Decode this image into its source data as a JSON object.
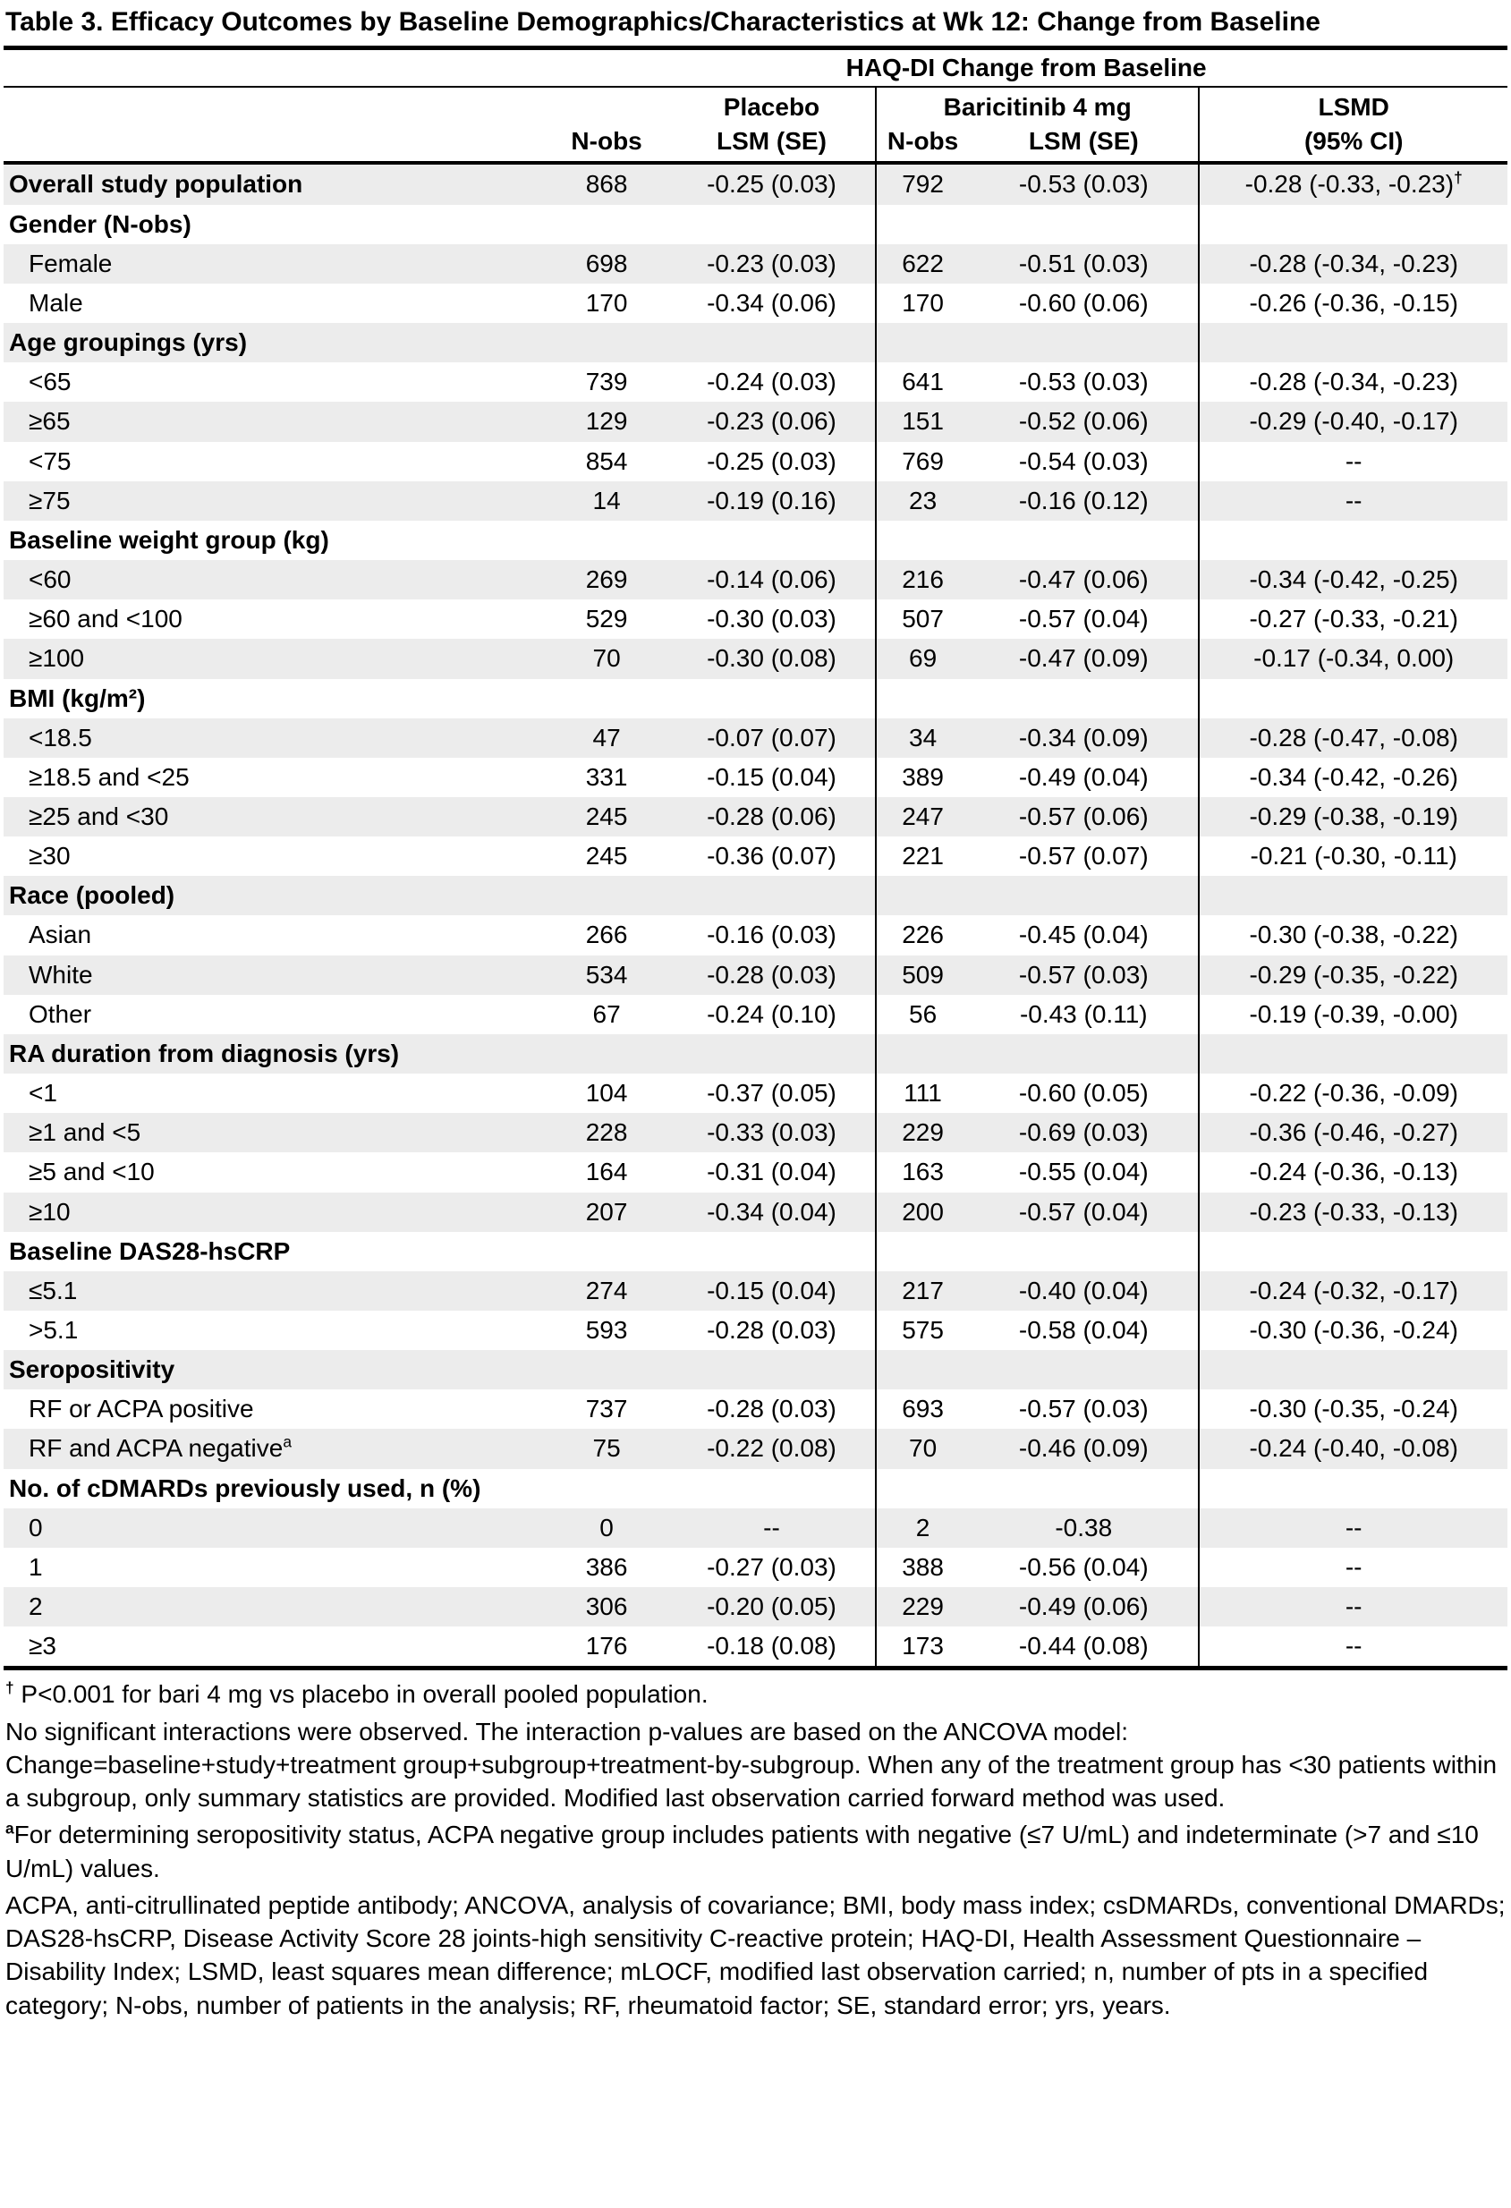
{
  "title": "Table 3. Efficacy Outcomes by Baseline Demographics/Characteristics at Wk 12: Change from Baseline",
  "colors": {
    "row_stripe": "#ececec",
    "text": "#000000",
    "background": "#ffffff"
  },
  "table": {
    "span_header": "HAQ-DI Change from Baseline",
    "groups": {
      "placebo": "Placebo",
      "baricitinib": "Baricitinib 4 mg",
      "lsmd": "LSMD"
    },
    "columns": {
      "nobs1": "N-obs",
      "lsm1": "LSM (SE)",
      "nobs2": "N-obs",
      "lsm2": "LSM (SE)",
      "ci": "(95% CI)"
    },
    "rows": [
      {
        "kind": "data",
        "emphasis": true,
        "label": "Overall study population",
        "values": [
          "868",
          "-0.25 (0.03)",
          "792",
          "-0.53 (0.03)",
          "-0.28 (-0.33, -0.23)"
        ],
        "value_sup": "†"
      },
      {
        "kind": "section",
        "label": "Gender (N-obs)"
      },
      {
        "kind": "data",
        "label": "Female",
        "values": [
          "698",
          "-0.23 (0.03)",
          "622",
          "-0.51 (0.03)",
          "-0.28 (-0.34, -0.23)"
        ]
      },
      {
        "kind": "data",
        "label": "Male",
        "values": [
          "170",
          "-0.34 (0.06)",
          "170",
          "-0.60 (0.06)",
          "-0.26 (-0.36, -0.15)"
        ]
      },
      {
        "kind": "section",
        "label": "Age groupings (yrs)"
      },
      {
        "kind": "data",
        "label": "<65",
        "values": [
          "739",
          "-0.24 (0.03)",
          "641",
          "-0.53 (0.03)",
          "-0.28 (-0.34, -0.23)"
        ]
      },
      {
        "kind": "data",
        "label": "≥65",
        "values": [
          "129",
          "-0.23 (0.06)",
          "151",
          "-0.52 (0.06)",
          "-0.29 (-0.40, -0.17)"
        ]
      },
      {
        "kind": "data",
        "label": "<75",
        "values": [
          "854",
          "-0.25 (0.03)",
          "769",
          "-0.54 (0.03)",
          "--"
        ]
      },
      {
        "kind": "data",
        "label": "≥75",
        "values": [
          "14",
          "-0.19 (0.16)",
          "23",
          "-0.16 (0.12)",
          "--"
        ]
      },
      {
        "kind": "section",
        "label": "Baseline weight group (kg)"
      },
      {
        "kind": "data",
        "label": "<60",
        "values": [
          "269",
          "-0.14 (0.06)",
          "216",
          "-0.47 (0.06)",
          "-0.34 (-0.42, -0.25)"
        ]
      },
      {
        "kind": "data",
        "label": "≥60 and <100",
        "values": [
          "529",
          "-0.30 (0.03)",
          "507",
          "-0.57 (0.04)",
          "-0.27 (-0.33, -0.21)"
        ]
      },
      {
        "kind": "data",
        "label": "≥100",
        "values": [
          "70",
          "-0.30 (0.08)",
          "69",
          "-0.47 (0.09)",
          "-0.17 (-0.34, 0.00)"
        ]
      },
      {
        "kind": "section",
        "label": "BMI (kg/m²)"
      },
      {
        "kind": "data",
        "label": "<18.5",
        "values": [
          "47",
          "-0.07 (0.07)",
          "34",
          "-0.34 (0.09)",
          "-0.28 (-0.47, -0.08)"
        ]
      },
      {
        "kind": "data",
        "label": "≥18.5 and <25",
        "values": [
          "331",
          "-0.15 (0.04)",
          "389",
          "-0.49 (0.04)",
          "-0.34 (-0.42, -0.26)"
        ]
      },
      {
        "kind": "data",
        "label": "≥25 and <30",
        "values": [
          "245",
          "-0.28 (0.06)",
          "247",
          "-0.57 (0.06)",
          "-0.29 (-0.38, -0.19)"
        ]
      },
      {
        "kind": "data",
        "label": "≥30",
        "values": [
          "245",
          "-0.36 (0.07)",
          "221",
          "-0.57 (0.07)",
          "-0.21 (-0.30, -0.11)"
        ]
      },
      {
        "kind": "section",
        "label": "Race (pooled)"
      },
      {
        "kind": "data",
        "label": "Asian",
        "values": [
          "266",
          "-0.16 (0.03)",
          "226",
          "-0.45 (0.04)",
          "-0.30 (-0.38, -0.22)"
        ]
      },
      {
        "kind": "data",
        "label": "White",
        "values": [
          "534",
          "-0.28 (0.03)",
          "509",
          "-0.57 (0.03)",
          "-0.29 (-0.35, -0.22)"
        ]
      },
      {
        "kind": "data",
        "label": "Other",
        "values": [
          "67",
          "-0.24 (0.10)",
          "56",
          "-0.43 (0.11)",
          "-0.19 (-0.39, -0.00)"
        ]
      },
      {
        "kind": "section",
        "label": "RA duration from diagnosis (yrs)"
      },
      {
        "kind": "data",
        "label": "<1",
        "values": [
          "104",
          "-0.37 (0.05)",
          "111",
          "-0.60 (0.05)",
          "-0.22 (-0.36, -0.09)"
        ]
      },
      {
        "kind": "data",
        "label": "≥1 and <5",
        "values": [
          "228",
          "-0.33 (0.03)",
          "229",
          "-0.69 (0.03)",
          "-0.36 (-0.46, -0.27)"
        ]
      },
      {
        "kind": "data",
        "label": "≥5 and <10",
        "values": [
          "164",
          "-0.31 (0.04)",
          "163",
          "-0.55 (0.04)",
          "-0.24 (-0.36, -0.13)"
        ]
      },
      {
        "kind": "data",
        "label": "≥10",
        "values": [
          "207",
          "-0.34 (0.04)",
          "200",
          "-0.57 (0.04)",
          "-0.23 (-0.33, -0.13)"
        ]
      },
      {
        "kind": "section",
        "label": "Baseline DAS28-hsCRP"
      },
      {
        "kind": "data",
        "label": "≤5.1",
        "values": [
          "274",
          "-0.15 (0.04)",
          "217",
          "-0.40 (0.04)",
          "-0.24 (-0.32, -0.17)"
        ]
      },
      {
        "kind": "data",
        "label": ">5.1",
        "values": [
          "593",
          "-0.28 (0.03)",
          "575",
          "-0.58 (0.04)",
          "-0.30 (-0.36, -0.24)"
        ]
      },
      {
        "kind": "section",
        "label": "Seropositivity"
      },
      {
        "kind": "data",
        "label": "RF or ACPA positive",
        "values": [
          "737",
          "-0.28 (0.03)",
          "693",
          "-0.57 (0.03)",
          "-0.30 (-0.35, -0.24)"
        ]
      },
      {
        "kind": "data",
        "label": "RF and ACPA negative",
        "label_sup": "a",
        "values": [
          "75",
          "-0.22 (0.08)",
          "70",
          "-0.46 (0.09)",
          "-0.24 (-0.40, -0.08)"
        ]
      },
      {
        "kind": "section",
        "label": "No. of cDMARDs previously used, n (%)"
      },
      {
        "kind": "data",
        "label": "0",
        "values": [
          "0",
          "--",
          "2",
          "-0.38",
          "--"
        ]
      },
      {
        "kind": "data",
        "label": "1",
        "values": [
          "386",
          "-0.27 (0.03)",
          "388",
          "-0.56 (0.04)",
          "--"
        ]
      },
      {
        "kind": "data",
        "label": "2",
        "values": [
          "306",
          "-0.20 (0.05)",
          "229",
          "-0.49 (0.06)",
          "--"
        ]
      },
      {
        "kind": "data",
        "label": "≥3",
        "values": [
          "176",
          "-0.18 (0.08)",
          "173",
          "-0.44 (0.08)",
          "--"
        ]
      }
    ]
  },
  "footnotes": [
    {
      "marker": "†",
      "text": " P<0.001 for bari 4 mg vs placebo in overall pooled population."
    },
    {
      "marker": "",
      "text": "No significant interactions were observed. The interaction p-values are based on the ANCOVA model: Change=baseline+study+treatment group+subgroup+treatment-by-subgroup. When any of the treatment group has <30 patients within a subgroup, only summary statistics are provided. Modified last observation carried forward method was used."
    },
    {
      "marker": "a",
      "text": "For determining seropositivity status, ACPA negative group includes patients with negative (≤7 U/mL) and indeterminate (>7 and ≤10 U/mL) values."
    },
    {
      "marker": "",
      "text": "ACPA, anti-citrullinated peptide antibody; ANCOVA, analysis of covariance; BMI, body mass index; csDMARDs, conventional DMARDs; DAS28-hsCRP, Disease Activity Score 28 joints-high sensitivity C-reactive protein; HAQ-DI, Health Assessment Questionnaire – Disability Index; LSMD, least squares mean difference; mLOCF, modified last observation carried; n, number of pts in a specified category; N-obs, number of patients in the analysis; RF, rheumatoid factor; SE, standard error; yrs, years."
    }
  ]
}
